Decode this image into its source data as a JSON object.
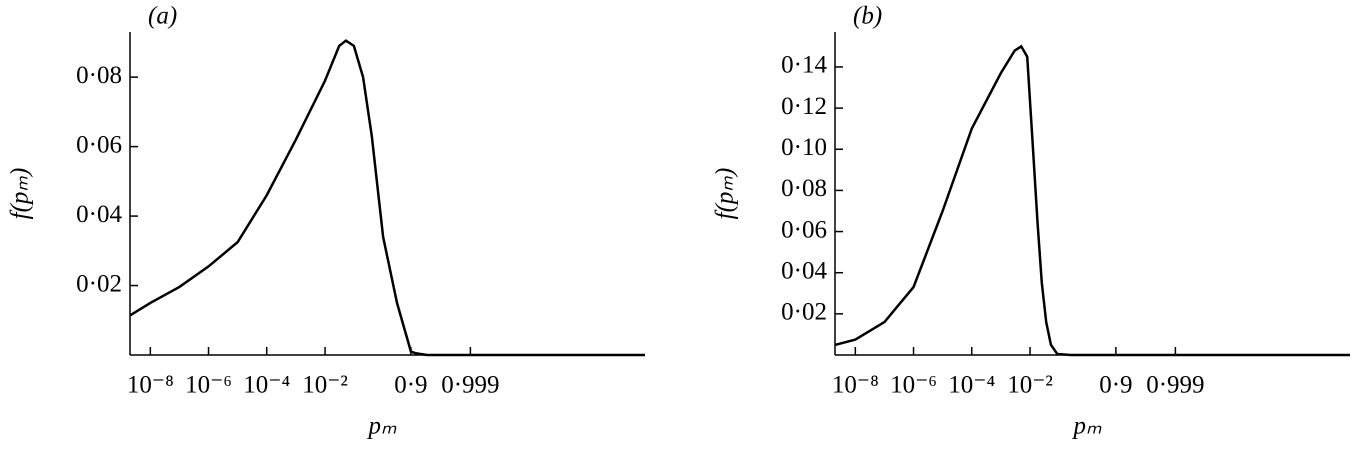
{
  "chart_data": [
    {
      "type": "line",
      "title": "(a)",
      "xlabel": "pₘ",
      "ylabel": "f(pₘ)",
      "color": "#000000",
      "xscale": "logit",
      "x": [
        2e-09,
        1e-08,
        1e-07,
        1e-06,
        1e-05,
        0.0001,
        0.001,
        0.01,
        0.03,
        0.05,
        0.09,
        0.17,
        0.29,
        0.5,
        0.6,
        0.75,
        0.9,
        0.93,
        0.97,
        0.999,
        0.999999999
      ],
      "values": [
        0.0114,
        0.015,
        0.0196,
        0.0255,
        0.0325,
        0.046,
        0.062,
        0.079,
        0.089,
        0.0905,
        0.089,
        0.08,
        0.063,
        0.034,
        0.027,
        0.015,
        0.001,
        0.0005,
        0,
        0,
        0
      ],
      "xlim": [
        2e-09,
        0.999999999
      ],
      "ylim": [
        0,
        0.093
      ],
      "xticks": [
        {
          "value": 1e-08,
          "label": "10⁻⁸"
        },
        {
          "value": 1e-06,
          "label": "10⁻⁶"
        },
        {
          "value": 0.0001,
          "label": "10⁻⁴"
        },
        {
          "value": 0.01,
          "label": "10⁻²"
        },
        {
          "value": 0.9,
          "label": "0·9"
        },
        {
          "value": 0.999,
          "label": "0·999"
        }
      ],
      "yticks": [
        {
          "value": 0.02,
          "label": "0·02"
        },
        {
          "value": 0.04,
          "label": "0·04"
        },
        {
          "value": 0.06,
          "label": "0·06"
        },
        {
          "value": 0.08,
          "label": "0·08"
        }
      ]
    },
    {
      "type": "line",
      "title": "(b)",
      "xlabel": "pₘ",
      "ylabel": "f(pₘ)",
      "color": "#000000",
      "xscale": "logit",
      "x": [
        2e-09,
        1e-08,
        1e-07,
        1e-06,
        1e-05,
        0.0001,
        0.001,
        0.003,
        0.005,
        0.008,
        0.012,
        0.018,
        0.025,
        0.035,
        0.05,
        0.08,
        0.2,
        0.9,
        0.999999999
      ],
      "values": [
        0.0049,
        0.0075,
        0.016,
        0.033,
        0.07,
        0.11,
        0.137,
        0.148,
        0.15,
        0.145,
        0.105,
        0.064,
        0.035,
        0.016,
        0.005,
        0.0005,
        0,
        0,
        0
      ],
      "xlim": [
        2e-09,
        0.999999999
      ],
      "ylim": [
        0,
        0.157
      ],
      "xticks": [
        {
          "value": 1e-08,
          "label": "10⁻⁸"
        },
        {
          "value": 1e-06,
          "label": "10⁻⁶"
        },
        {
          "value": 0.0001,
          "label": "10⁻⁴"
        },
        {
          "value": 0.01,
          "label": "10⁻²"
        },
        {
          "value": 0.9,
          "label": "0·9"
        },
        {
          "value": 0.999,
          "label": "0·999"
        }
      ],
      "yticks": [
        {
          "value": 0.02,
          "label": "0·02"
        },
        {
          "value": 0.04,
          "label": "0·04"
        },
        {
          "value": 0.06,
          "label": "0·06"
        },
        {
          "value": 0.08,
          "label": "0·08"
        },
        {
          "value": 0.1,
          "label": "0·10"
        },
        {
          "value": 0.12,
          "label": "0·12"
        },
        {
          "value": 0.14,
          "label": "0·14"
        }
      ]
    }
  ]
}
